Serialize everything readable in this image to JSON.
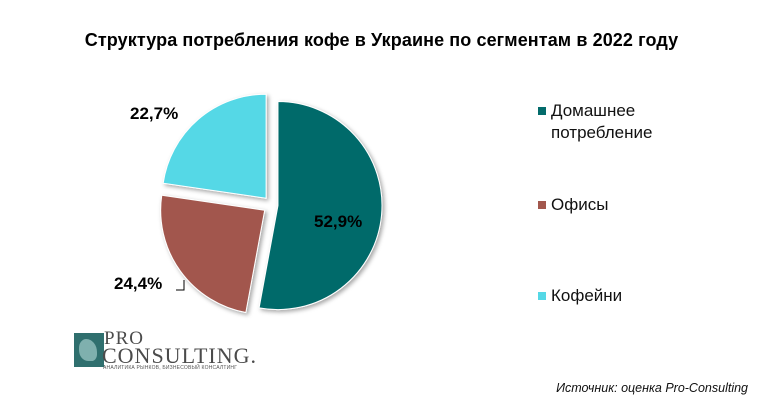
{
  "title": "Структура потребления кофе в Украине по сегментам в 2022 году",
  "chart_data": {
    "type": "pie",
    "title": "Структура потребления кофе в Украине по сегментам в 2022 году",
    "slices": [
      {
        "name": "Домашнее потребление",
        "value": 52.9,
        "label": "52,9%",
        "color": "#036b6b"
      },
      {
        "name": "Офисы",
        "value": 24.4,
        "label": "24,4%",
        "color": "#a2574d"
      },
      {
        "name": "Кофейни",
        "value": 22.7,
        "label": "22,7%",
        "color": "#55d8e6"
      }
    ],
    "legend_position": "right"
  },
  "legend": [
    {
      "label": "Домашнее\nпотребление",
      "color": "#036b6b"
    },
    {
      "label": "Офисы",
      "color": "#a2574d"
    },
    {
      "label": "Кофейни",
      "color": "#55d8e6"
    }
  ],
  "logo": {
    "line1": "PRO",
    "line2": "CONSULTING.",
    "tagline": "АНАЛИТИКА РЫНКОВ, БИЗНЕСОВЫЙ КОНСАЛТИНГ"
  },
  "source": "Источник: оценка Pro-Consulting"
}
